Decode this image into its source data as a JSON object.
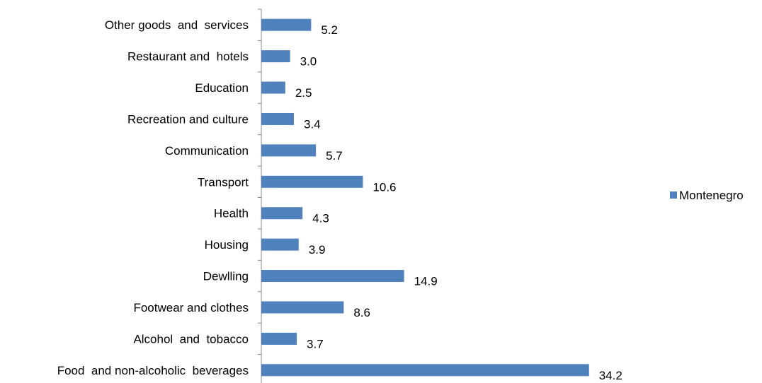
{
  "chart_data": {
    "type": "bar",
    "orientation": "horizontal",
    "categories": [
      "Food  and non-alcoholic  beverages",
      "Alcohol  and  tobacco",
      "Footwear and clothes",
      "Dewlling",
      "Housing",
      "Health",
      "Transport",
      "Communication",
      "Recreation and culture",
      "Education",
      "Restaurant and  hotels",
      "Other goods  and  services"
    ],
    "series": [
      {
        "name": "Montenegro",
        "color": "#4f81bd",
        "values": [
          34.2,
          3.7,
          8.6,
          14.9,
          3.9,
          4.3,
          10.6,
          5.7,
          3.4,
          2.5,
          3.0,
          5.2
        ],
        "value_labels": [
          "34.2",
          "3.7",
          "8.6",
          "14.9",
          "3.9",
          "4.3",
          "10.6",
          "5.7",
          "3.4",
          "2.5",
          "3.0",
          "5.2"
        ]
      }
    ],
    "xlim": [
      0,
      40
    ],
    "grid": false,
    "x_axis_visible": false,
    "data_labels": true,
    "legend": {
      "position": "right",
      "entries": [
        "Montenegro"
      ]
    }
  }
}
